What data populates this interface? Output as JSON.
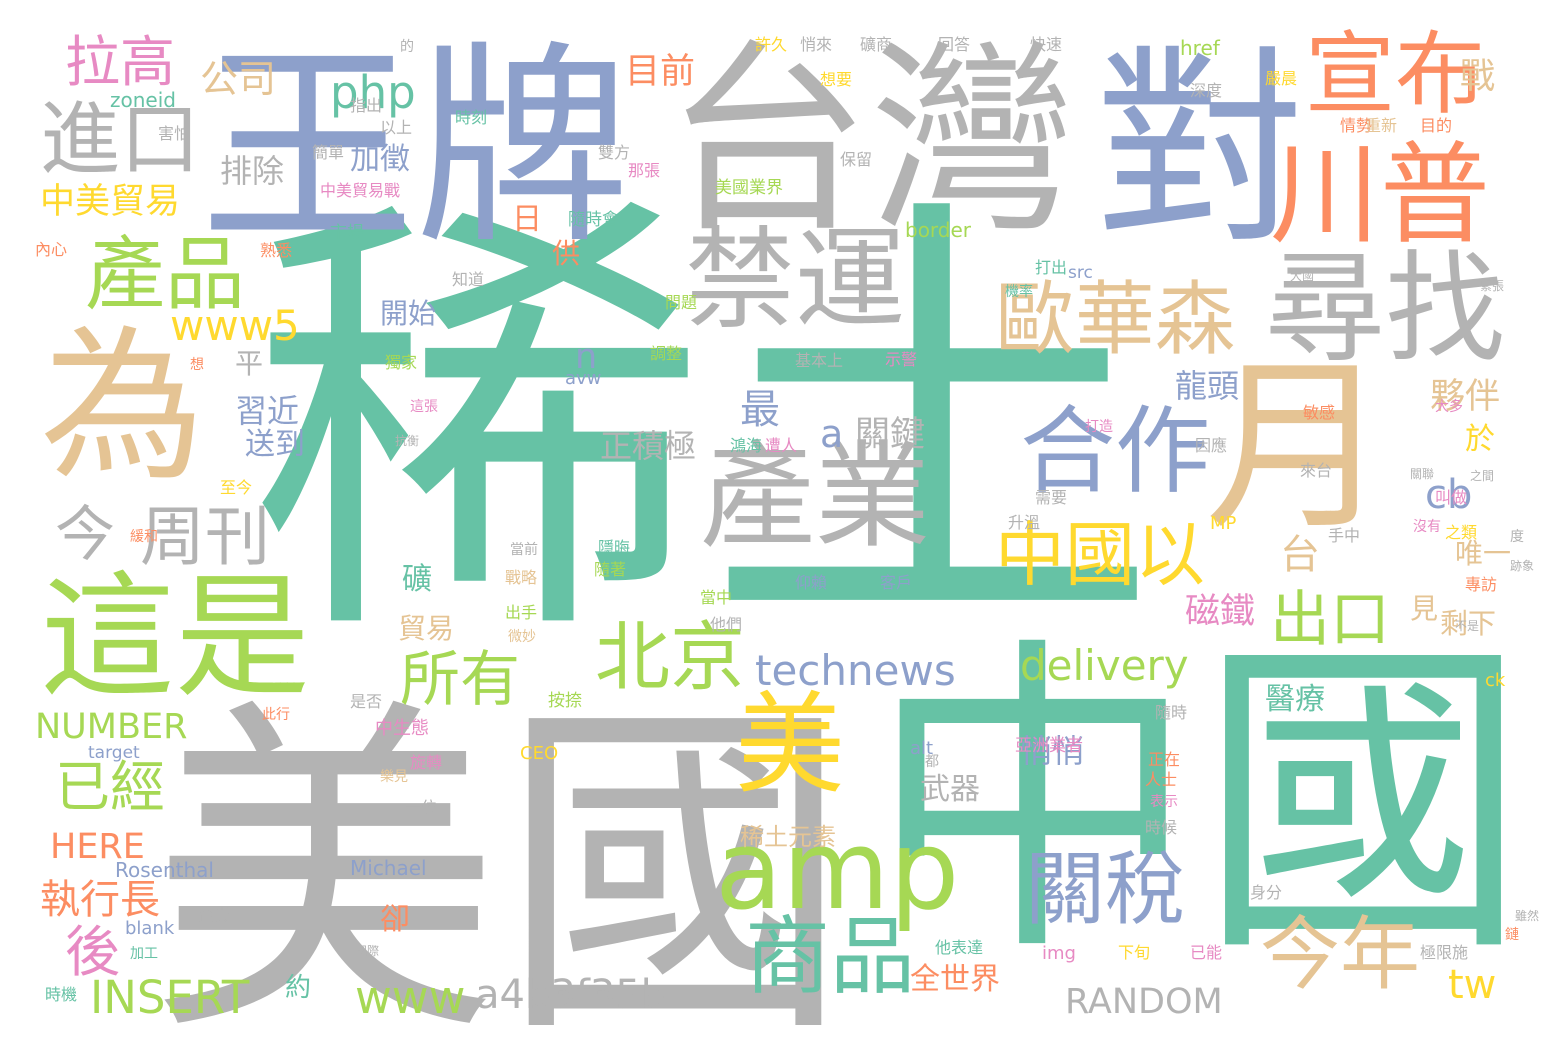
{
  "colors": {
    "teal": "#66c2a5",
    "orange": "#fc8d62",
    "blue": "#8da0cb",
    "pink": "#e78ac3",
    "green": "#a6d854",
    "yellow": "#ffd92f",
    "tan": "#e5c494",
    "gray": "#b3b3b3"
  },
  "words": [
    "稀土",
    "中國",
    "美國",
    "王牌",
    "台灣",
    "對",
    "為",
    "月",
    "這是",
    "禁運",
    "產業",
    "尋找",
    "宣布",
    "川普",
    "amp",
    "美",
    "合作",
    "歐華森",
    "產品",
    "進口",
    "關稅",
    "商品",
    "中國以",
    "北京",
    "所有",
    "今年",
    "technews",
    "delivery",
    "出口",
    "www5",
    "php",
    "拉高",
    "周刊",
    "今",
    "已經",
    "後",
    "INSERT",
    "www",
    "a4b3f35b",
    "RANDOM",
    "NUMBER",
    "HERE",
    "執行長",
    "中美貿易",
    "公司",
    "目前",
    "戰",
    "龍頭",
    "夥伴",
    "於",
    "cb",
    "tw",
    "磁鐵",
    "正積極",
    "a",
    "關鍵",
    "最",
    "n",
    "習近",
    "送到",
    "平",
    "台",
    "排除",
    "加徵",
    "日",
    "供",
    "開始",
    "悄悄",
    "全世界",
    "礦",
    "貿易",
    "見",
    "剩下",
    "唯一",
    "醫療",
    "武器",
    "稀土元素",
    "卻",
    "約",
    "zoneid",
    "中美貿易戰",
    "害怕",
    "指出",
    "隨時會",
    "美國業界",
    "市場",
    "border",
    "src",
    "img",
    "alt",
    "avw",
    "CEO",
    "Michael",
    "Rosenthal",
    "target",
    "blank",
    "href",
    "MP",
    "ck",
    "亞洲業者",
    "基本上",
    "至今",
    "雙方",
    "那張",
    "許久",
    "悄來",
    "礦商",
    "回答",
    "快速",
    "深度",
    "嚴晨",
    "情勢",
    "重新",
    "目的",
    "想要",
    "保留",
    "簡單",
    "以上",
    "時刻",
    "想",
    "內心",
    "熟悉",
    "知道",
    "問題",
    "獨家",
    "調整",
    "示警",
    "敏感",
    "來台",
    "需要",
    "隱晦",
    "隨著",
    "戰略",
    "出手",
    "仰賴",
    "客戶",
    "當中",
    "他們",
    "按捺",
    "中生態",
    "此行",
    "是否",
    "隨時",
    "正在",
    "人士",
    "表示",
    "一位",
    "時候",
    "企業",
    "加工",
    "時機",
    "他表達",
    "下旬",
    "已能",
    "身分",
    "極限施",
    "手中",
    "專訪",
    "之類",
    "叫做",
    "鴻海",
    "遭人",
    "因應",
    "打出",
    "機率",
    "打造",
    "大多",
    "沒有",
    "關聯",
    "這張",
    "旋轉",
    "樂見",
    "微妙",
    "當前",
    "升溫",
    "緩和",
    "都",
    "鏈",
    "雖然",
    "之間",
    "的",
    "度",
    "跡象",
    "緊張",
    "抗衡",
    "不是",
    "國際",
    "大國"
  ]
}
